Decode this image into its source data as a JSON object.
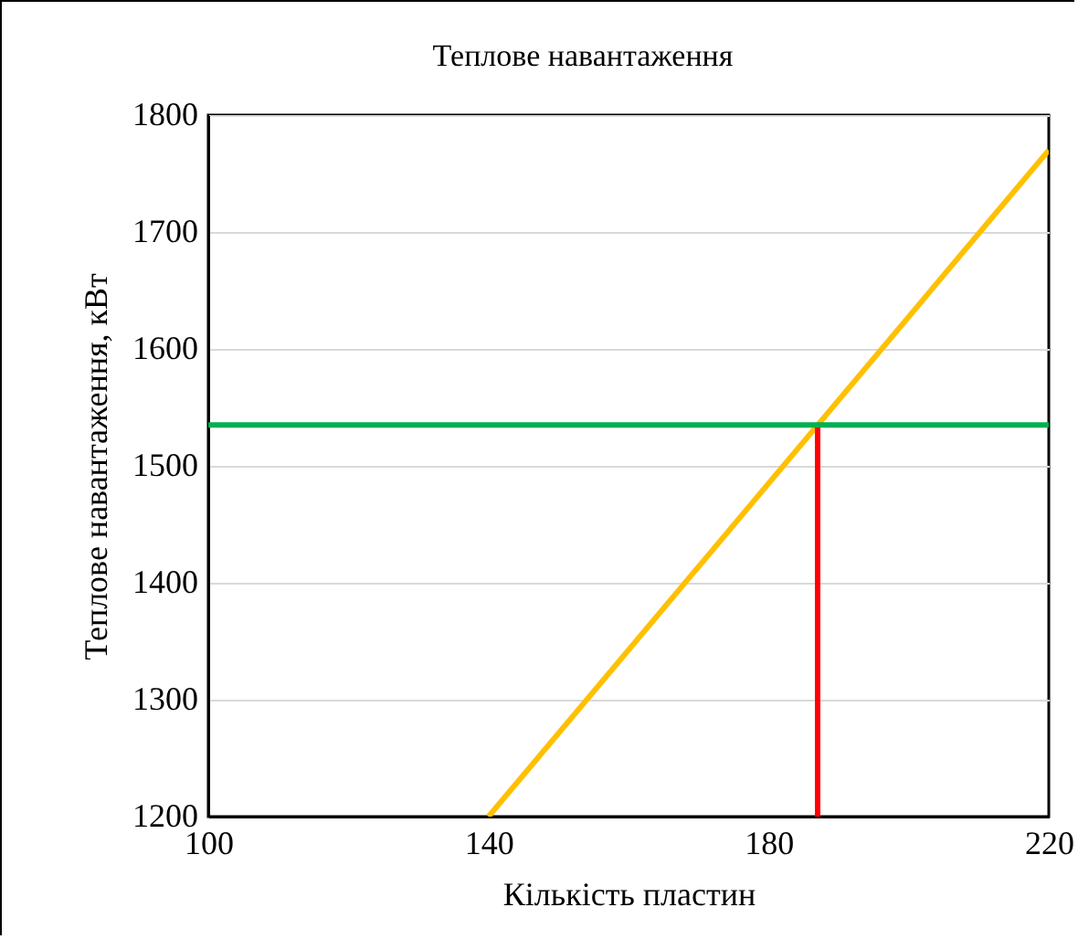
{
  "chart_data": {
    "type": "line",
    "title": "Теплове навантаження",
    "xlabel": "Кількість пластин",
    "ylabel": "Теплове навантаження, кВт",
    "xlim": [
      100,
      220
    ],
    "xticks": [
      100,
      140,
      180,
      220
    ],
    "ylim": [
      1200,
      1800
    ],
    "yticks": [
      1200,
      1300,
      1400,
      1500,
      1600,
      1700,
      1800
    ],
    "series": [
      {
        "color": "#ffc000",
        "x": [
          140,
          220
        ],
        "values": [
          1200,
          1770
        ]
      },
      {
        "color": "#ff0000",
        "x": [
          187,
          187
        ],
        "values": [
          1200,
          1535
        ]
      }
    ],
    "ref_lines": [
      {
        "axis": "y",
        "value": 1535,
        "color": "#00b050"
      }
    ],
    "grid": "y",
    "marker": "none",
    "line_style": "solid"
  }
}
